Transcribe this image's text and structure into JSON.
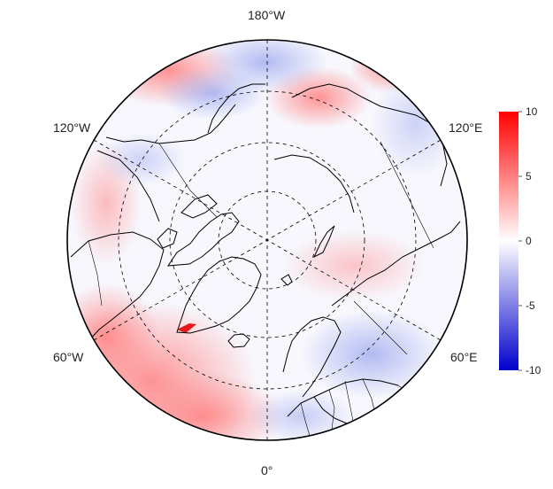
{
  "map": {
    "projection": "north-polar-stereographic",
    "longitude_labels": {
      "top": "180°W",
      "bottom": "0°",
      "upper_left": "120°W",
      "upper_right": "120°E",
      "lower_left": "60°W",
      "lower_right": "60°E"
    },
    "graticule_style": "dashed",
    "field_description_colors": {
      "positive": "#ff0000",
      "zero": "#ffffff",
      "negative": "#0000cc"
    },
    "land_outline_color": "#000000"
  },
  "colorbar": {
    "min": -10,
    "max": 10,
    "ticks": [
      "10",
      "5",
      "0",
      "-5",
      "-10"
    ],
    "colors": {
      "high": "#ff0000",
      "mid": "#ffffff",
      "low": "#0000cc"
    }
  }
}
